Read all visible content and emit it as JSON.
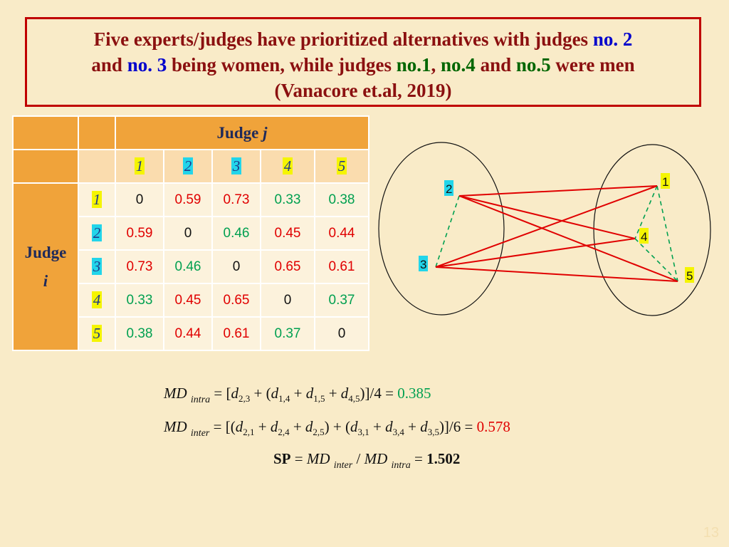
{
  "title": {
    "p1": "Five experts/judges have prioritized alternatives with judges ",
    "p2": "no. 2",
    "p3": "and ",
    "p4": "no. 3",
    "p5": " being women, while judges ",
    "p6": "no.1",
    "p7": ", ",
    "p8": "no.4",
    "p9": " and ",
    "p10": "no.5",
    "p11": "  were men",
    "p12": "(Vanacore et.al, 2019)"
  },
  "table": {
    "col_header": "Judge ",
    "col_header_var": "j",
    "row_header": "Judge",
    "row_header_var": "i",
    "col_indices": [
      "1",
      "2",
      "3",
      "4",
      "5"
    ],
    "row_indices": [
      "1",
      "2",
      "3",
      "4",
      "5"
    ],
    "rows": [
      [
        "0",
        "0.59",
        "0.73",
        "0.33",
        "0.38"
      ],
      [
        "0.59",
        "0",
        "0.46",
        "0.45",
        "0.44"
      ],
      [
        "0.73",
        "0.46",
        "0",
        "0.65",
        "0.61"
      ],
      [
        "0.33",
        "0.45",
        "0.65",
        "0",
        "0.37"
      ],
      [
        "0.38",
        "0.44",
        "0.61",
        "0.37",
        "0"
      ]
    ]
  },
  "diagram": {
    "nodes": [
      "1",
      "2",
      "3",
      "4",
      "5"
    ],
    "intra_color": "#00a050",
    "inter_color": "#e00000"
  },
  "formulas": {
    "md": "MD",
    "intra": "intra",
    "inter": "inter",
    "intra_result": "0.385",
    "inter_result": "0.578",
    "sp_label": "SP",
    "sp_result": "1.502"
  },
  "page_number": "13"
}
